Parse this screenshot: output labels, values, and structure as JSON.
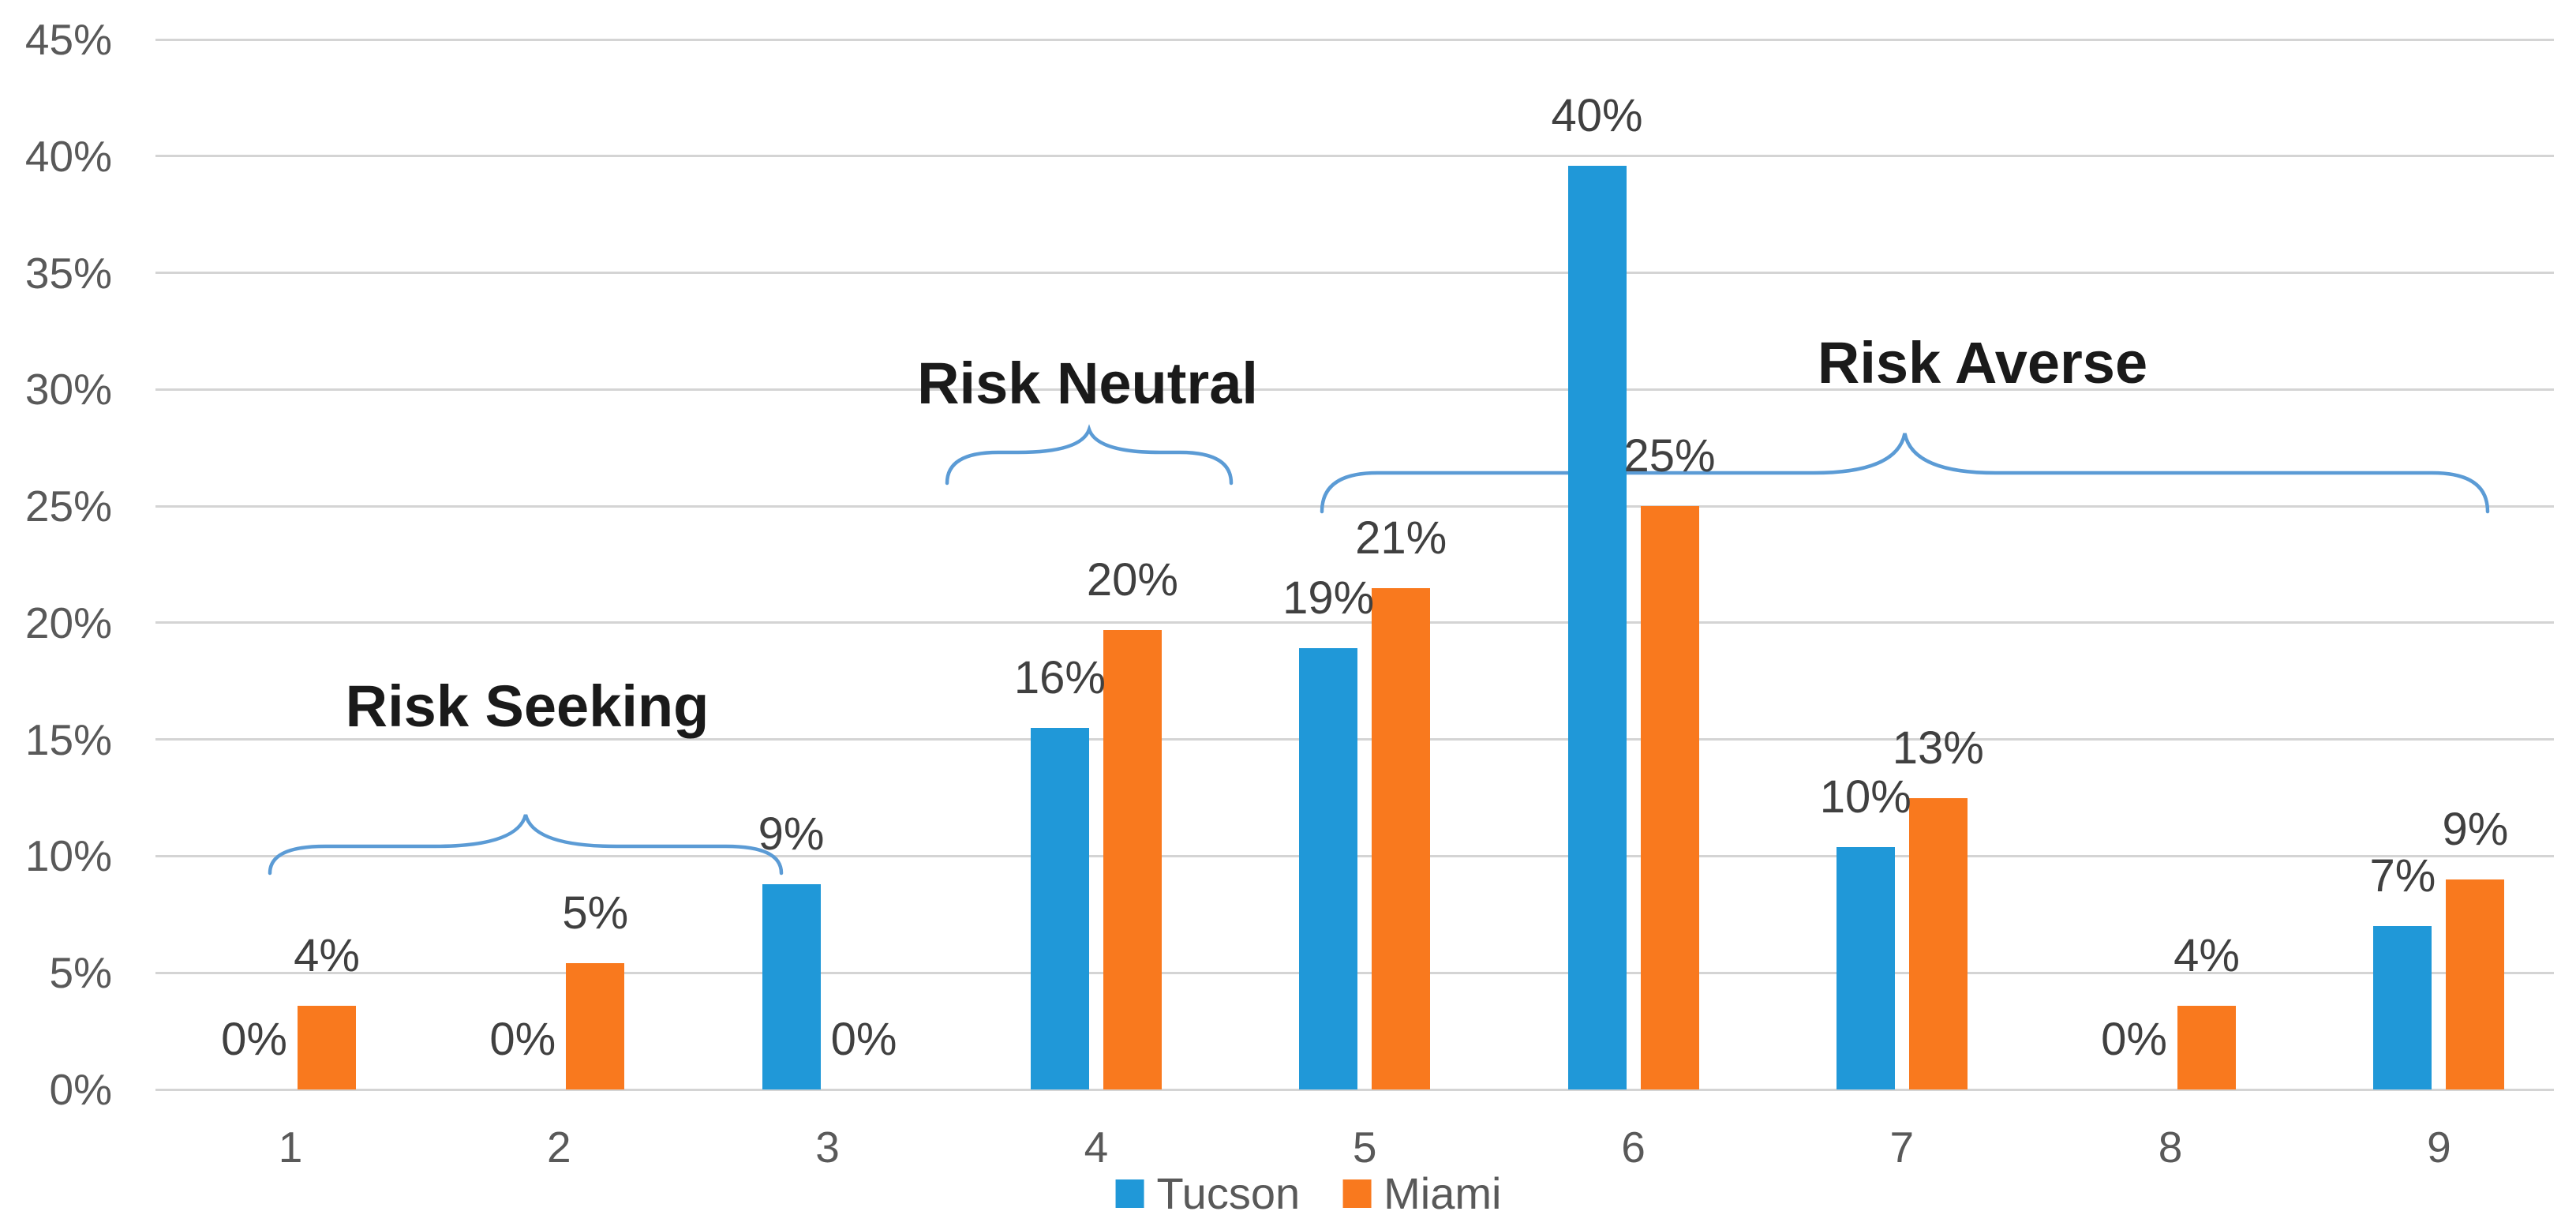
{
  "chart_data": {
    "type": "bar",
    "title": "",
    "categories": [
      "1",
      "2",
      "3",
      "4",
      "5",
      "6",
      "7",
      "8",
      "9"
    ],
    "series": [
      {
        "name": "Tucson",
        "color": "#2098d8",
        "values": [
          0,
          0,
          9,
          16,
          19,
          40,
          10,
          0,
          7
        ],
        "labels": [
          "0%",
          "0%",
          "9%",
          "16%",
          "19%",
          "40%",
          "10%",
          "0%",
          "7%"
        ],
        "bar_heights_pct": [
          0,
          0,
          8.8,
          15.5,
          18.9,
          39.6,
          10.4,
          0,
          7.0
        ]
      },
      {
        "name": "Miami",
        "color": "#f9791e",
        "values": [
          4,
          5,
          0,
          20,
          21,
          25,
          13,
          4,
          9
        ],
        "labels": [
          "4%",
          "5%",
          "0%",
          "20%",
          "21%",
          "25%",
          "13%",
          "4%",
          "9%"
        ],
        "bar_heights_pct": [
          3.6,
          5.4,
          0,
          19.7,
          21.5,
          25.0,
          12.5,
          3.6,
          9.0
        ]
      }
    ],
    "xlabel": "",
    "ylabel": "",
    "ylim": [
      0,
      45
    ],
    "ytick_labels": [
      "45%",
      "40%",
      "35%",
      "30%",
      "25%",
      "20%",
      "15%",
      "10%",
      "5%",
      "0%"
    ],
    "grid": "horizontal",
    "legend_position": "bottom-center",
    "legend": [
      "Tucson",
      "Miami"
    ],
    "annotations": [
      {
        "text": "Risk Seeking",
        "categories": "1-3"
      },
      {
        "text": "Risk Neutral",
        "categories": "4"
      },
      {
        "text": "Risk Averse",
        "categories": "5-9"
      }
    ],
    "brace_color": "#5b9bd5"
  }
}
